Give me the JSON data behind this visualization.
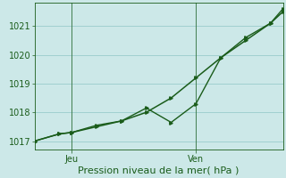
{
  "background_color": "#cce8e8",
  "grid_color": "#99cccc",
  "line_color": "#1a5c1a",
  "xlabel": "Pression niveau de la mer( hPa )",
  "ylim": [
    1016.7,
    1021.8
  ],
  "yticks": [
    1017,
    1018,
    1019,
    1020,
    1021
  ],
  "xlim": [
    0,
    10
  ],
  "xtick_positions": [
    1.5,
    6.5
  ],
  "xtick_labels": [
    "Jeu",
    "Ven"
  ],
  "vline_positions": [
    1.5,
    6.5
  ],
  "smooth_line": {
    "x": [
      0,
      1.0,
      1.5,
      2.5,
      3.5,
      4.5,
      5.5,
      6.5,
      7.5,
      8.5,
      9.5,
      10.0
    ],
    "y": [
      1017.0,
      1017.25,
      1017.3,
      1017.5,
      1017.7,
      1018.0,
      1018.5,
      1019.2,
      1019.9,
      1020.5,
      1021.1,
      1021.5
    ]
  },
  "jagged_line": {
    "x": [
      0,
      1.0,
      1.5,
      2.5,
      3.5,
      4.5,
      5.5,
      6.5,
      7.5,
      8.5,
      9.5,
      10.0
    ],
    "y": [
      1017.0,
      1017.25,
      1017.3,
      1017.55,
      1017.7,
      1018.15,
      1017.65,
      1018.3,
      1019.9,
      1020.6,
      1021.1,
      1021.6
    ]
  },
  "figsize": [
    3.2,
    2.0
  ],
  "dpi": 100,
  "xlabel_fontsize": 8,
  "tick_fontsize": 7
}
